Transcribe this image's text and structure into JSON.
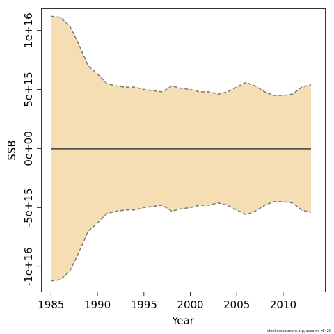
{
  "chart_data": {
    "type": "area",
    "xlabel": "Year",
    "ylabel": "SSB",
    "xlim": [
      1984,
      2014.5
    ],
    "ylim": [
      -1.21e+16,
      1.18e+16
    ],
    "x_ticks": [
      1985,
      1990,
      1995,
      2000,
      2005,
      2010
    ],
    "x_tick_labels": [
      "1985",
      "1990",
      "1995",
      "2000",
      "2005",
      "2010"
    ],
    "y_ticks": [
      -1e+16,
      -5000000000000000.0,
      0,
      5000000000000000.0,
      1e+16
    ],
    "y_tick_labels": [
      "-1e+16",
      "-5e+15",
      "0e+00",
      "5e+15",
      "1e+16"
    ],
    "grid": false,
    "band_color": "#f5deb3",
    "band_edge_color": "#777777",
    "line_color": "#555555",
    "x": [
      1985,
      1986,
      1987,
      1988,
      1989,
      1990,
      1991,
      1992,
      1993,
      1994,
      1995,
      1996,
      1997,
      1998,
      1999,
      2000,
      2001,
      2002,
      2003,
      2004,
      2005,
      2006,
      2007,
      2008,
      2009,
      2010,
      2011,
      2012,
      2013
    ],
    "series": [
      {
        "type": "line",
        "values": [
          0,
          0,
          0,
          0,
          0,
          0,
          0,
          0,
          0,
          0,
          0,
          0,
          0,
          0,
          0,
          0,
          0,
          0,
          0,
          0,
          0,
          0,
          0,
          0,
          0,
          0,
          0,
          0,
          0
        ]
      },
      {
        "type": "band_upper",
        "values": [
          1.12e+16,
          1.11e+16,
          1.04e+16,
          8800000000000000.0,
          7000000000000000.0,
          6300000000000000.0,
          5500000000000000.0,
          5300000000000000.0,
          5200000000000000.0,
          5200000000000000.0,
          5000000000000000.0,
          4900000000000000.0,
          4800000000000000.0,
          5300000000000000.0,
          5100000000000000.0,
          5000000000000000.0,
          4800000000000000.0,
          4800000000000000.0,
          4600000000000000.0,
          4800000000000000.0,
          5200000000000000.0,
          5600000000000000.0,
          5300000000000000.0,
          4800000000000000.0,
          4500000000000000.0,
          4500000000000000.0,
          4600000000000000.0,
          5200000000000000.0,
          5400000000000000.0
        ]
      },
      {
        "type": "band_lower",
        "values": [
          -1.12e+16,
          -1.11e+16,
          -1.04e+16,
          -8800000000000000.0,
          -7000000000000000.0,
          -6300000000000000.0,
          -5500000000000000.0,
          -5300000000000000.0,
          -5200000000000000.0,
          -5200000000000000.0,
          -5000000000000000.0,
          -4900000000000000.0,
          -4800000000000000.0,
          -5300000000000000.0,
          -5100000000000000.0,
          -5000000000000000.0,
          -4800000000000000.0,
          -4800000000000000.0,
          -4600000000000000.0,
          -4800000000000000.0,
          -5200000000000000.0,
          -5600000000000000.0,
          -5300000000000000.0,
          -4800000000000000.0,
          -4500000000000000.0,
          -4500000000000000.0,
          -4600000000000000.0,
          -5200000000000000.0,
          -5400000000000000.0
        ]
      }
    ]
  },
  "footer_text": "stockassessment.org, sseo-m, r6420"
}
